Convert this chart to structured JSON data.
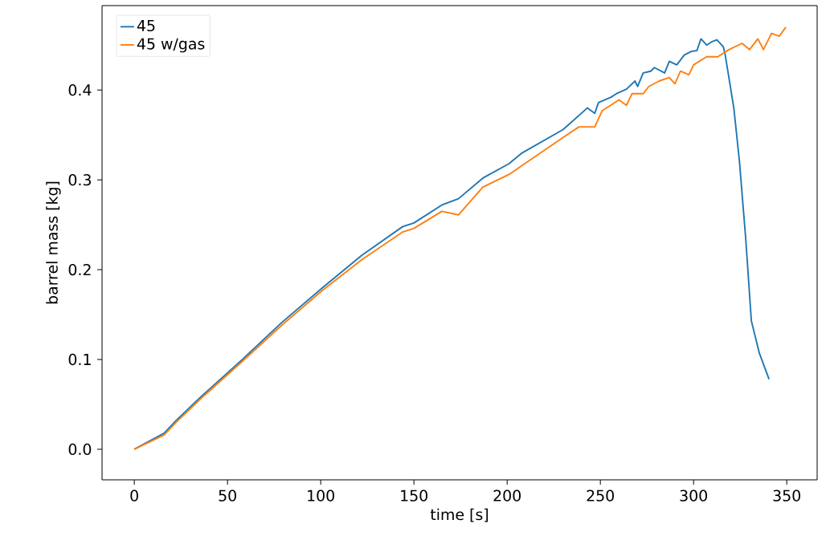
{
  "chart_data": {
    "type": "line",
    "xlabel": "time [s]",
    "ylabel": "barrel mass [kg]",
    "xlim": [
      -17.3,
      366.3
    ],
    "ylim": [
      -0.034,
      0.494
    ],
    "xticks": [
      0,
      50,
      100,
      150,
      200,
      250,
      300,
      350
    ],
    "yticks": [
      {
        "value": 0,
        "label": "0.0"
      },
      {
        "value": 0.1,
        "label": "0.1"
      },
      {
        "value": 0.2,
        "label": "0.2"
      },
      {
        "value": 0.3,
        "label": "0.3"
      },
      {
        "value": 0.4,
        "label": "0.4"
      }
    ],
    "grid": false,
    "legend": "top left",
    "marker": "none",
    "line_style": "solid",
    "series": [
      {
        "name": "45",
        "color": "#1f77b4",
        "x": [
          0,
          16,
          22.4,
          36,
          58,
          79,
          101,
          122,
          144,
          150,
          165,
          173.9,
          187,
          201,
          208,
          230,
          243,
          247,
          249,
          255.7,
          258.7,
          264,
          268.6,
          270,
          273,
          277,
          279,
          284.5,
          287,
          291,
          295,
          298.7,
          301.8,
          304,
          307,
          310,
          312.5,
          316,
          317,
          321.6,
          324.6,
          328,
          331,
          335.3,
          340.5
        ],
        "values": [
          0,
          0.018,
          0.032,
          0.059,
          0.1,
          0.141,
          0.18,
          0.216,
          0.248,
          0.252,
          0.272,
          0.279,
          0.302,
          0.318,
          0.33,
          0.356,
          0.38,
          0.374,
          0.386,
          0.392,
          0.396,
          0.401,
          0.41,
          0.404,
          0.419,
          0.421,
          0.425,
          0.419,
          0.432,
          0.428,
          0.439,
          0.443,
          0.444,
          0.457,
          0.45,
          0.454,
          0.456,
          0.448,
          0.439,
          0.38,
          0.321,
          0.234,
          0.143,
          0.107,
          0.078
        ]
      },
      {
        "name": "45 w/gas",
        "color": "#ff7f0e",
        "x": [
          0,
          16,
          22.4,
          36,
          58,
          79,
          101,
          122,
          144,
          150,
          165,
          173.9,
          187,
          201,
          208,
          229.9,
          238.5,
          247,
          251,
          260,
          264,
          267,
          273,
          276,
          281.5,
          287,
          290,
          293,
          297.5,
          300,
          307,
          313,
          319,
          326,
          330,
          334.5,
          337.5,
          341.8,
          346,
          349.5
        ],
        "values": [
          0,
          0.016,
          0.03,
          0.057,
          0.098,
          0.138,
          0.177,
          0.211,
          0.242,
          0.246,
          0.265,
          0.261,
          0.292,
          0.306,
          0.316,
          0.347,
          0.359,
          0.359,
          0.377,
          0.389,
          0.383,
          0.396,
          0.396,
          0.404,
          0.41,
          0.414,
          0.407,
          0.421,
          0.417,
          0.428,
          0.437,
          0.437,
          0.445,
          0.452,
          0.445,
          0.457,
          0.445,
          0.463,
          0.46,
          0.47
        ]
      }
    ]
  }
}
